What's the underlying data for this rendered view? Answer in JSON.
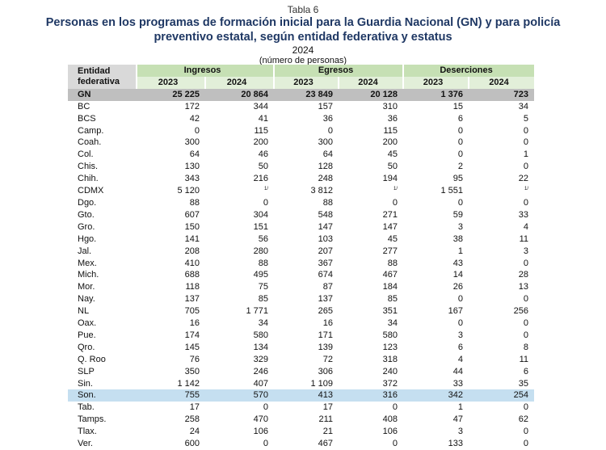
{
  "caption": {
    "table_number": "Tabla 6",
    "title_line1": "Personas en los programas de formación inicial para la Guardia Nacional (GN) y para policía",
    "title_line2": "preventivo estatal, según entidad federativa y estatus",
    "year": "2024",
    "unit": "(número de personas)"
  },
  "header": {
    "entity_label_line1": "Entidad",
    "entity_label_line2": "federativa",
    "groups": [
      "Ingresos",
      "Egresos",
      "Deserciones"
    ],
    "years": [
      "2023",
      "2024",
      "2023",
      "2024",
      "2023",
      "2024"
    ]
  },
  "rows": [
    {
      "name": "GN",
      "values": [
        "25 225",
        "20 864",
        "23 849",
        "20 128",
        "1 376",
        "723"
      ]
    },
    {
      "name": "BC",
      "values": [
        "172",
        "344",
        "157",
        "310",
        "15",
        "34"
      ]
    },
    {
      "name": "BCS",
      "values": [
        "42",
        "41",
        "36",
        "36",
        "6",
        "5"
      ]
    },
    {
      "name": "Camp.",
      "values": [
        "0",
        "115",
        "0",
        "115",
        "0",
        "0"
      ]
    },
    {
      "name": "Coah.",
      "values": [
        "300",
        "200",
        "300",
        "200",
        "0",
        "0"
      ]
    },
    {
      "name": "Col.",
      "values": [
        "64",
        "46",
        "64",
        "45",
        "0",
        "1"
      ]
    },
    {
      "name": "Chis.",
      "values": [
        "130",
        "50",
        "128",
        "50",
        "2",
        "0"
      ]
    },
    {
      "name": "Chih.",
      "values": [
        "343",
        "216",
        "248",
        "194",
        "95",
        "22"
      ]
    },
    {
      "name": "CDMX",
      "values": [
        "5 120",
        "1/",
        "3 812",
        "1/",
        "1 551",
        "1/"
      ]
    },
    {
      "name": "Dgo.",
      "values": [
        "88",
        "0",
        "88",
        "0",
        "0",
        "0"
      ]
    },
    {
      "name": "Gto.",
      "values": [
        "607",
        "304",
        "548",
        "271",
        "59",
        "33"
      ]
    },
    {
      "name": "Gro.",
      "values": [
        "150",
        "151",
        "147",
        "147",
        "3",
        "4"
      ]
    },
    {
      "name": "Hgo.",
      "values": [
        "141",
        "56",
        "103",
        "45",
        "38",
        "11"
      ]
    },
    {
      "name": "Jal.",
      "values": [
        "208",
        "280",
        "207",
        "277",
        "1",
        "3"
      ]
    },
    {
      "name": "Mex.",
      "values": [
        "410",
        "88",
        "367",
        "88",
        "43",
        "0"
      ]
    },
    {
      "name": "Mich.",
      "values": [
        "688",
        "495",
        "674",
        "467",
        "14",
        "28"
      ]
    },
    {
      "name": "Mor.",
      "values": [
        "118",
        "75",
        "87",
        "184",
        "26",
        "13"
      ]
    },
    {
      "name": "Nay.",
      "values": [
        "137",
        "85",
        "137",
        "85",
        "0",
        "0"
      ]
    },
    {
      "name": "NL",
      "values": [
        "705",
        "1 771",
        "265",
        "351",
        "167",
        "256"
      ]
    },
    {
      "name": "Oax.",
      "values": [
        "16",
        "34",
        "16",
        "34",
        "0",
        "0"
      ]
    },
    {
      "name": "Pue.",
      "values": [
        "174",
        "580",
        "171",
        "580",
        "3",
        "0"
      ]
    },
    {
      "name": "Qro.",
      "values": [
        "145",
        "134",
        "139",
        "123",
        "6",
        "8"
      ]
    },
    {
      "name": "Q. Roo",
      "values": [
        "76",
        "329",
        "72",
        "318",
        "4",
        "11"
      ]
    },
    {
      "name": "SLP",
      "values": [
        "350",
        "246",
        "306",
        "240",
        "44",
        "6"
      ]
    },
    {
      "name": "Sin.",
      "values": [
        "1 142",
        "407",
        "1 109",
        "372",
        "33",
        "35"
      ]
    },
    {
      "name": "Son.",
      "values": [
        "755",
        "570",
        "413",
        "316",
        "342",
        "254"
      ]
    },
    {
      "name": "Tab.",
      "values": [
        "17",
        "0",
        "17",
        "0",
        "1",
        "0"
      ]
    },
    {
      "name": "Tamps.",
      "values": [
        "258",
        "470",
        "211",
        "408",
        "47",
        "62"
      ]
    },
    {
      "name": "Tlax.",
      "values": [
        "24",
        "106",
        "21",
        "106",
        "3",
        "0"
      ]
    },
    {
      "name": "Ver.",
      "values": [
        "600",
        "0",
        "467",
        "0",
        "133",
        "0"
      ]
    }
  ],
  "colors": {
    "title": "#1f3864",
    "group_header_bg": "#c6e0b4",
    "year_header_bg": "#e2efd9",
    "entity_header_bg": "#d9d9d9",
    "total_row_bg": "#bfbfbf",
    "highlight_row_bg": "#c5dff0"
  },
  "highlighted_row": "Son."
}
